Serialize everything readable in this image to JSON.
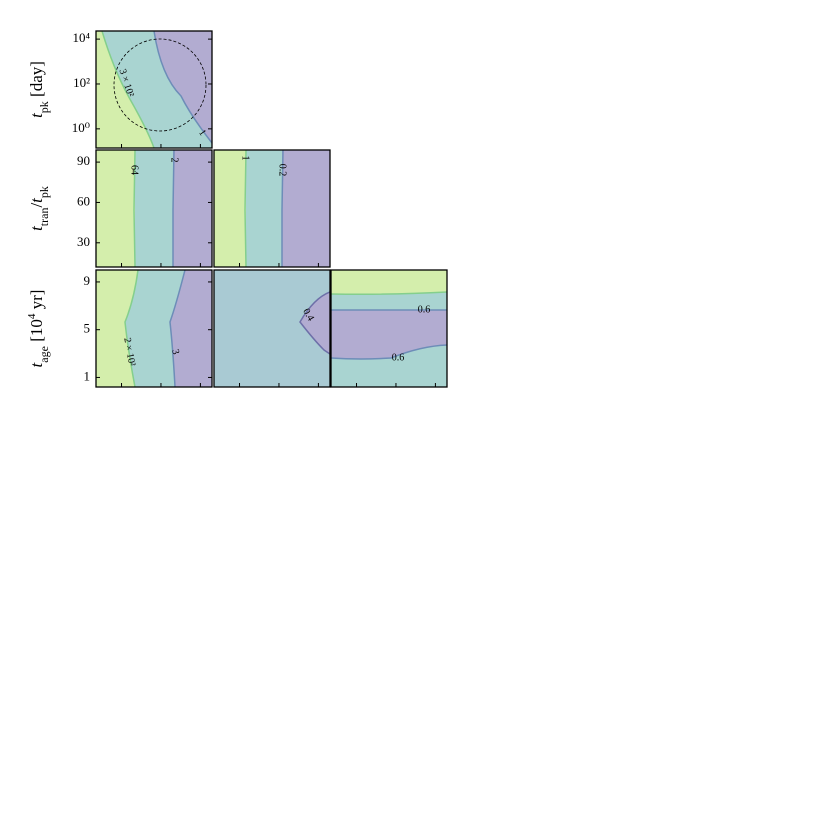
{
  "chart_data": [
    {
      "type": "contour",
      "log": true,
      "ylim": [
        0.14,
        23000
      ],
      "yticks": [
        {
          "value": 10000,
          "label": "10⁴"
        },
        {
          "value": 100,
          "label": "10²"
        },
        {
          "value": 1,
          "label": "10⁰"
        }
      ],
      "ylabel": [
        {
          "text": "t",
          "italic": true
        },
        {
          "text": "pk",
          "sub": true
        },
        {
          "text": " [day]"
        }
      ],
      "levels": [
        {
          "value": 300,
          "label": "3 × 10²"
        },
        1
      ],
      "colors": [
        "#d4eeac",
        "#a9d4d1",
        "#b2acd1"
      ],
      "edge_colors": [
        "#84cf8c",
        "#6d8db8"
      ]
    },
    {
      "type": "contour",
      "log": false,
      "ylim": [
        12,
        99
      ],
      "yticks": [
        90,
        60,
        30
      ],
      "ylabel": [
        {
          "text": "t",
          "italic": true
        },
        {
          "text": "tran",
          "sub": true
        },
        {
          "text": "/"
        },
        {
          "text": "t",
          "italic": true
        },
        {
          "text": "pk",
          "sub": true
        }
      ],
      "levels": [
        64,
        2
      ],
      "colors": [
        "#d4eeac",
        "#a9d4d1",
        "#b2acd1"
      ],
      "edge_colors": [
        "#84cf8c",
        "#6d8db8"
      ]
    },
    {
      "type": "contour",
      "levels": [
        1,
        0.2
      ],
      "colors": [
        "#d4eeac",
        "#a9d4d1",
        "#b2acd1"
      ],
      "edge_colors": [
        "#84cf8c",
        "#6d8db8"
      ]
    },
    {
      "type": "contour",
      "log": false,
      "ylim": [
        0.2,
        10
      ],
      "yticks": [
        9,
        5,
        1
      ],
      "ylabel": [
        {
          "text": "t",
          "italic": true
        },
        {
          "text": "age",
          "sub": true
        },
        {
          "text": " [10"
        },
        {
          "text": "4",
          "sup": true
        },
        {
          "text": " yr]"
        }
      ],
      "levels": [
        {
          "value": 200,
          "label": "2 × 10²"
        },
        3
      ],
      "colors": [
        "#d4eeac",
        "#a9d4d1",
        "#b2acd1"
      ],
      "edge_colors": [
        "#84cf8c",
        "#6d8db8"
      ]
    },
    {
      "type": "contour",
      "levels": [
        0.4
      ],
      "colors": [
        "#d4eeac",
        "#a9cad3",
        "#b2acd1"
      ],
      "edge_colors": [
        "#84cf8c",
        "#6d6fa8"
      ]
    },
    {
      "type": "contour",
      "levels": [
        0.6,
        0.6
      ],
      "colors": [
        "#d4eeac",
        "#a9d4d1",
        "#b2acd1"
      ],
      "edge_colors": [
        "#84cf8c",
        "#6d8db8"
      ]
    }
  ]
}
